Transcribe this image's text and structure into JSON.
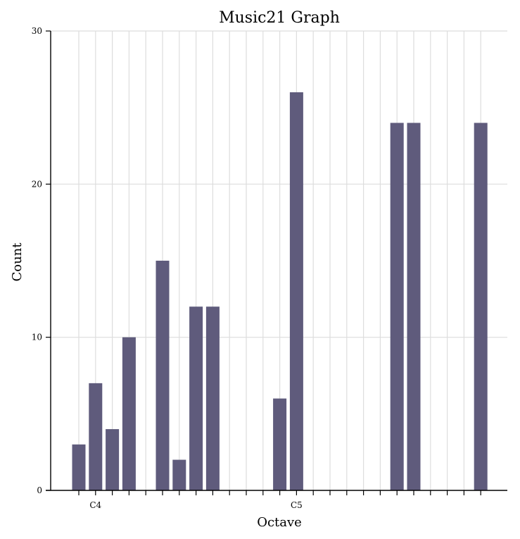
{
  "chart_data": {
    "type": "bar",
    "title": "Music21 Graph",
    "xlabel": "Octave",
    "ylabel": "Count",
    "ylim": [
      0,
      30
    ],
    "yticks": [
      0,
      10,
      20,
      30
    ],
    "grid": true,
    "color": "#5f5b7c",
    "slots": 25,
    "x_tick_labels": [
      {
        "slot": 1,
        "label": "C4"
      },
      {
        "slot": 13,
        "label": "C5"
      }
    ],
    "bars": [
      {
        "slot": 0,
        "value": 3
      },
      {
        "slot": 1,
        "value": 7
      },
      {
        "slot": 2,
        "value": 4
      },
      {
        "slot": 3,
        "value": 10
      },
      {
        "slot": 5,
        "value": 15
      },
      {
        "slot": 6,
        "value": 2
      },
      {
        "slot": 7,
        "value": 12
      },
      {
        "slot": 8,
        "value": 12
      },
      {
        "slot": 12,
        "value": 6
      },
      {
        "slot": 13,
        "value": 26
      },
      {
        "slot": 19,
        "value": 24
      },
      {
        "slot": 20,
        "value": 24
      },
      {
        "slot": 24,
        "value": 24
      }
    ]
  }
}
